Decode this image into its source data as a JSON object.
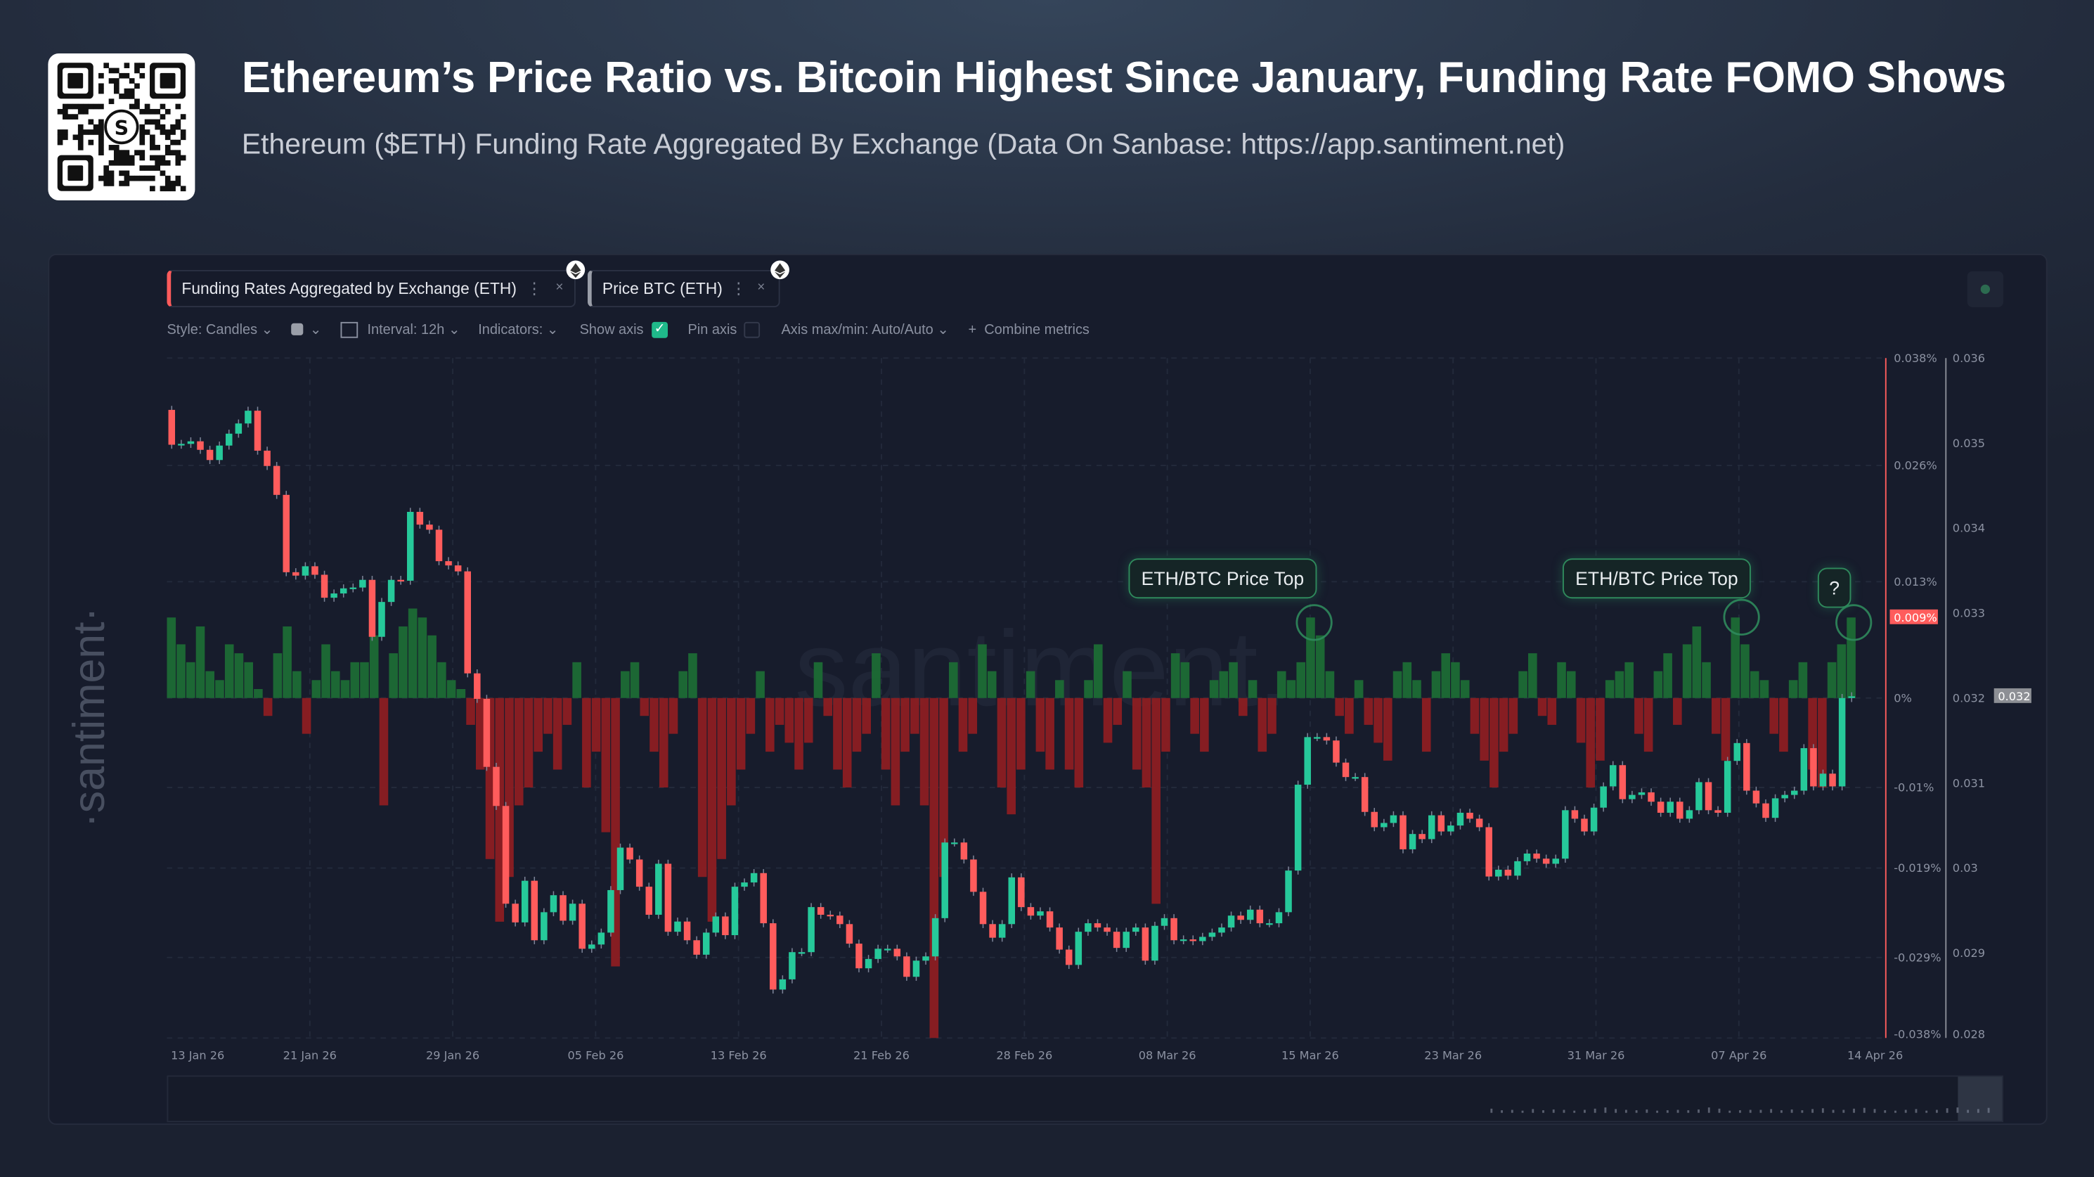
{
  "header": {
    "title": "Ethereum’s Price Ratio vs. Bitcoin Highest Since January, Funding Rate FOMO Shows",
    "subtitle": "Ethereum ($ETH) Funding Rate Aggregated By Exchange (Data On Sanbase: https://app.santiment.net)",
    "qr_logo_letter": "S"
  },
  "tabs": [
    {
      "label": "Funding Rates Aggregated by Exchange (ETH)",
      "color": "#ff5b5b",
      "icon": "ethereum-icon"
    },
    {
      "label": "Price BTC (ETH)",
      "color": "#9a9ea8",
      "icon": "ethereum-icon"
    }
  ],
  "toolbar": {
    "style": "Style: Candles",
    "interval": "Interval: 12h",
    "indicators": "Indicators:",
    "show_axis": "Show axis",
    "show_axis_checked": true,
    "pin_axis": "Pin axis",
    "pin_axis_checked": false,
    "axis_maxmin": "Axis max/min: Auto/Auto",
    "combine": "Combine metrics"
  },
  "watermark": "·santiment·",
  "watermark_center": "santiment.",
  "annotations": [
    "ETH/BTC Price Top",
    "ETH/BTC Price Top",
    "?"
  ],
  "colors": {
    "up": "#26c99a",
    "down": "#ff5c5c",
    "funding_pos": "#1c6b35",
    "funding_neg": "#8c1d22",
    "accent": "#2f8a5c"
  },
  "chart_data": {
    "type": "candlestick+bar",
    "x_tick_labels": [
      "13 Jan 26",
      "21 Jan 26",
      "29 Jan 26",
      "05 Feb 26",
      "13 Feb 26",
      "21 Feb 26",
      "28 Feb 26",
      "08 Mar 26",
      "15 Mar 26",
      "23 Mar 26",
      "31 Mar 26",
      "07 Apr 26",
      "14 Apr 26"
    ],
    "funding_axis": {
      "ticks": [
        "0.038%",
        "0.026%",
        "0.013%",
        "0%",
        "-0.01%",
        "-0.019%",
        "-0.029%",
        "-0.038%"
      ],
      "range": [
        -0.038,
        0.038
      ],
      "current_label": "0.009%"
    },
    "price_axis": {
      "ticks": [
        "0.036",
        "0.035",
        "0.034",
        "0.033",
        "0.032",
        "0.031",
        "0.03",
        "0.029",
        "0.028"
      ],
      "range": [
        0.028,
        0.036
      ],
      "current_label": "0.032"
    },
    "price_open_first": 0.03539,
    "price_close": [
      0.03498,
      0.03499,
      0.03502,
      0.03492,
      0.0348,
      0.03497,
      0.03511,
      0.03523,
      0.03538,
      0.03491,
      0.03473,
      0.03439,
      0.03348,
      0.03344,
      0.03355,
      0.03345,
      0.03318,
      0.03323,
      0.03329,
      0.0333,
      0.03339,
      0.03272,
      0.03313,
      0.03339,
      0.03338,
      0.03419,
      0.03404,
      0.03398,
      0.03361,
      0.03356,
      0.03349,
      0.03229,
      0.03199,
      0.03119,
      0.03073,
      0.02958,
      0.02936,
      0.02985,
      0.02915,
      0.02948,
      0.02968,
      0.02938,
      0.02958,
      0.02905,
      0.0291,
      0.02924,
      0.02974,
      0.03024,
      0.0301,
      0.02978,
      0.02945,
      0.03005,
      0.02925,
      0.02937,
      0.02915,
      0.02898,
      0.02924,
      0.02943,
      0.02921,
      0.02978,
      0.02983,
      0.02994,
      0.02935,
      0.02857,
      0.02869,
      0.02901,
      0.02901,
      0.02954,
      0.02945,
      0.02944,
      0.02934,
      0.02911,
      0.02882,
      0.02893,
      0.02905,
      0.02905,
      0.02896,
      0.02872,
      0.02891,
      0.02896,
      0.02941,
      0.0303,
      0.0303,
      0.0301,
      0.02972,
      0.02934,
      0.02918,
      0.02934,
      0.02989,
      0.02954,
      0.02944,
      0.02949,
      0.0293,
      0.02904,
      0.02886,
      0.02925,
      0.02935,
      0.0293,
      0.02925,
      0.02906,
      0.02925,
      0.0293,
      0.02891,
      0.02932,
      0.02941,
      0.02915,
      0.02916,
      0.02914,
      0.02919,
      0.02924,
      0.0293,
      0.02944,
      0.02939,
      0.02951,
      0.02935,
      0.02935,
      0.02948,
      0.02997,
      0.03098,
      0.03154,
      0.03154,
      0.0315,
      0.03124,
      0.03107,
      0.03107,
      0.03066,
      0.03048,
      0.03053,
      0.03062,
      0.03022,
      0.0304,
      0.03034,
      0.03062,
      0.03043,
      0.0305,
      0.03065,
      0.03058,
      0.03048,
      0.0299,
      0.02998,
      0.02991,
      0.03008,
      0.03017,
      0.03011,
      0.03005,
      0.03011,
      0.03068,
      0.03058,
      0.03043,
      0.03071,
      0.03096,
      0.03121,
      0.03081,
      0.03086,
      0.03089,
      0.03078,
      0.03065,
      0.03078,
      0.03058,
      0.03068,
      0.03101,
      0.03068,
      0.03065,
      0.03126,
      0.03147,
      0.03091,
      0.03076,
      0.03059,
      0.03082,
      0.03086,
      0.03091,
      0.03141,
      0.03096,
      0.03111,
      0.03096,
      0.032,
      0.03202
    ],
    "funding_rate_pct": [
      0.009,
      0.006,
      0.004,
      0.008,
      0.003,
      0.002,
      0.006,
      0.005,
      0.004,
      0.001,
      -0.002,
      0.005,
      0.008,
      0.003,
      -0.004,
      0.002,
      0.006,
      0.003,
      0.002,
      0.004,
      0.004,
      0.007,
      -0.012,
      0.005,
      0.008,
      0.01,
      0.009,
      0.007,
      0.004,
      0.002,
      0.001,
      -0.003,
      -0.008,
      -0.018,
      -0.025,
      -0.02,
      -0.012,
      -0.01,
      -0.006,
      -0.004,
      -0.008,
      -0.003,
      0.004,
      -0.01,
      -0.006,
      -0.015,
      -0.03,
      0.003,
      0.004,
      -0.002,
      -0.006,
      -0.01,
      -0.004,
      0.003,
      0.005,
      -0.02,
      -0.025,
      -0.018,
      -0.012,
      -0.008,
      -0.004,
      0.003,
      -0.006,
      -0.003,
      -0.005,
      -0.008,
      -0.005,
      0.004,
      -0.002,
      -0.008,
      -0.01,
      -0.006,
      -0.004,
      0.005,
      -0.008,
      -0.012,
      -0.006,
      -0.004,
      -0.012,
      -0.038,
      -0.02,
      0.004,
      -0.006,
      -0.004,
      0.006,
      0.003,
      -0.01,
      -0.013,
      -0.008,
      0.003,
      -0.006,
      -0.008,
      0.002,
      -0.008,
      -0.01,
      0.002,
      0.006,
      -0.005,
      -0.003,
      0.003,
      -0.008,
      -0.01,
      -0.023,
      -0.006,
      0.005,
      0.004,
      -0.004,
      -0.006,
      0.002,
      0.003,
      0.004,
      -0.002,
      0.002,
      -0.006,
      -0.004,
      0.003,
      0.002,
      0.004,
      0.009,
      0.007,
      0.003,
      -0.002,
      -0.004,
      0.002,
      -0.003,
      -0.005,
      -0.007,
      0.003,
      0.004,
      0.002,
      -0.006,
      0.003,
      0.005,
      0.004,
      0.002,
      -0.004,
      -0.007,
      -0.01,
      -0.006,
      -0.004,
      0.003,
      0.005,
      -0.002,
      -0.003,
      0.004,
      0.003,
      -0.005,
      -0.01,
      -0.007,
      0.002,
      0.003,
      0.004,
      -0.004,
      -0.006,
      0.003,
      0.005,
      -0.003,
      0.006,
      0.008,
      0.004,
      -0.004,
      -0.007,
      0.009,
      0.006,
      0.003,
      0.002,
      -0.004,
      -0.006,
      0.002,
      0.004,
      -0.008,
      -0.01,
      0.004,
      0.006,
      0.009
    ],
    "grid": true
  }
}
